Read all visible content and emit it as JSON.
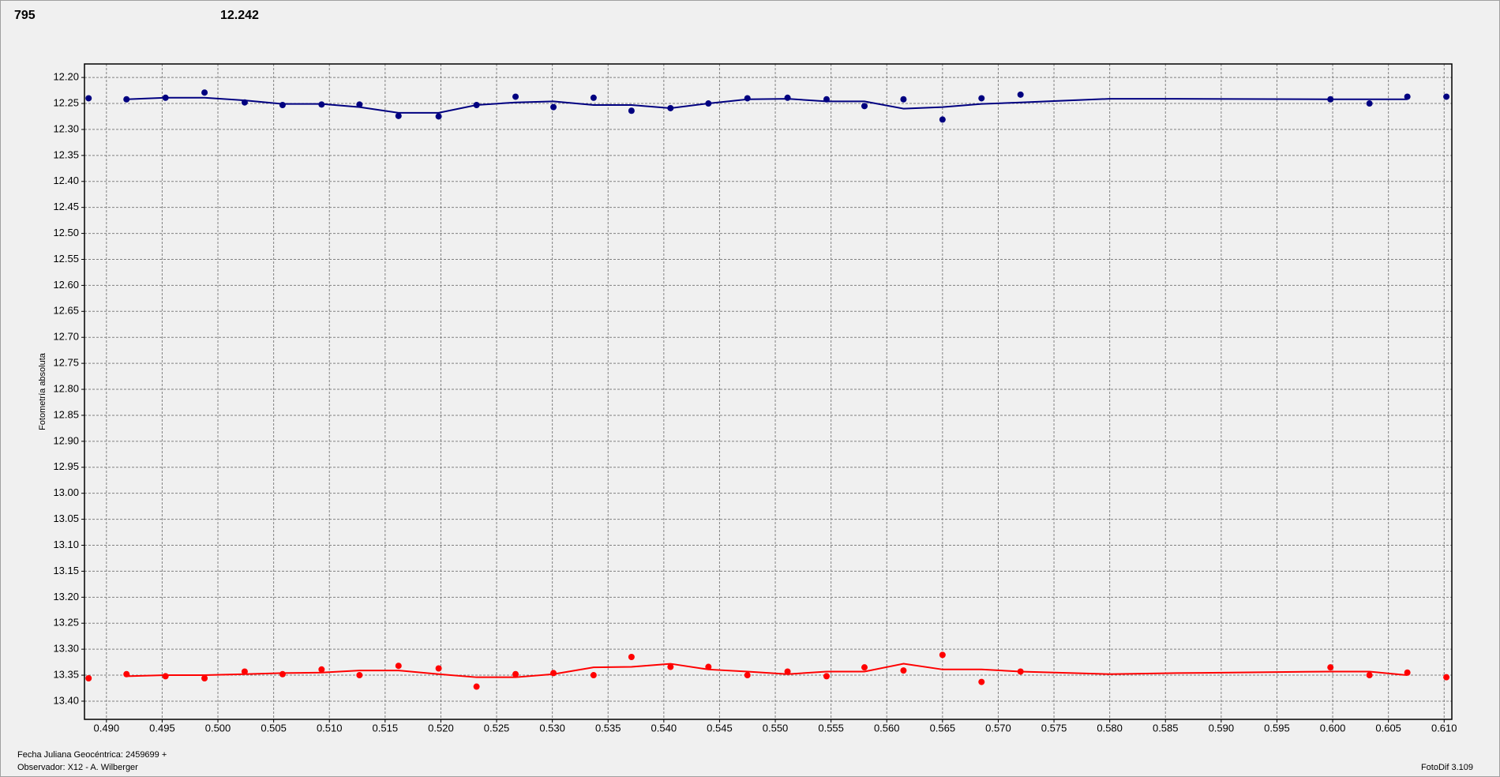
{
  "chart_data": {
    "type": "scatter",
    "readouts": [
      {
        "text": "795",
        "color": "#ff0000"
      },
      {
        "text": "12.242",
        "color": "#000080"
      }
    ],
    "y_label": "Fotometría absoluta",
    "footer_left": [
      "Fecha Juliana Geocéntrica: 2459699 +",
      "Observador: X12 - A. Wilberger"
    ],
    "footer_right": "FotoDif 3.109",
    "xlim": [
      0.48803,
      0.61069
    ],
    "ylim": [
      12.174,
      13.435
    ],
    "y_inverted": true,
    "grid": true,
    "xticks": [
      {
        "value": 0.49,
        "label": "0.490"
      },
      0.495,
      {
        "value": 0.5,
        "label": "0.500"
      },
      0.505,
      {
        "value": 0.51,
        "label": "0.510"
      },
      0.515,
      {
        "value": 0.52,
        "label": "0.520"
      },
      0.525,
      {
        "value": 0.53,
        "label": "0.530"
      },
      0.535,
      {
        "value": 0.54,
        "label": "0.540"
      },
      0.545,
      {
        "value": 0.55,
        "label": "0.550"
      },
      0.555,
      {
        "value": 0.56,
        "label": "0.560"
      },
      0.565,
      {
        "value": 0.57,
        "label": "0.570"
      },
      0.575,
      {
        "value": 0.58,
        "label": "0.580"
      },
      0.585,
      {
        "value": 0.59,
        "label": "0.590"
      },
      0.595,
      {
        "value": 0.6,
        "label": "0.600"
      },
      0.605,
      {
        "value": 0.61,
        "label": "0.610"
      }
    ],
    "yticks": [
      {
        "value": 12.2,
        "label": "12.20"
      },
      12.25,
      {
        "value": 12.3,
        "label": "12.30"
      },
      12.35,
      {
        "value": 12.4,
        "label": "12.40"
      },
      12.45,
      {
        "value": 12.5,
        "label": "12.50"
      },
      12.55,
      {
        "value": 12.6,
        "label": "12.60"
      },
      12.65,
      {
        "value": 12.7,
        "label": "12.70"
      },
      12.75,
      {
        "value": 12.8,
        "label": "12.80"
      },
      12.85,
      {
        "value": 12.9,
        "label": "12.90"
      },
      12.95,
      {
        "value": 13.0,
        "label": "13.00"
      },
      13.05,
      {
        "value": 13.1,
        "label": "13.10"
      },
      13.15,
      {
        "value": 13.2,
        "label": "13.20"
      },
      13.25,
      {
        "value": 13.3,
        "label": "13.30"
      },
      13.35,
      {
        "value": 13.4,
        "label": "13.40"
      }
    ],
    "series": [
      {
        "style": "points",
        "color": "#000080",
        "x": [
          0.4884,
          0.4918,
          0.4953,
          0.4988,
          0.5024,
          0.5058,
          0.5093,
          0.5127,
          0.5162,
          0.5198,
          0.5232,
          0.5267,
          0.5301,
          0.5337,
          0.5371,
          0.5406,
          0.544,
          0.5475,
          0.5511,
          0.5546,
          0.558,
          0.5615,
          0.565,
          0.5685,
          0.572,
          0.5998,
          0.6033,
          0.6067,
          0.6102
        ],
        "values": [
          12.24,
          12.242,
          12.239,
          12.229,
          12.248,
          12.253,
          12.252,
          12.252,
          12.274,
          12.275,
          12.253,
          12.237,
          12.257,
          12.239,
          12.264,
          12.259,
          12.25,
          12.24,
          12.239,
          12.242,
          12.255,
          12.242,
          12.281,
          12.24,
          12.233,
          12.242,
          12.25,
          12.237,
          12.237
        ]
      },
      {
        "style": "line",
        "color": "#000080",
        "x": [
          0.4918,
          0.4953,
          0.4988,
          0.5024,
          0.5058,
          0.5093,
          0.5127,
          0.5162,
          0.5198,
          0.5232,
          0.5267,
          0.5301,
          0.5337,
          0.5371,
          0.5406,
          0.544,
          0.5475,
          0.5511,
          0.5546,
          0.558,
          0.5615,
          0.565,
          0.5685,
          0.572,
          0.58,
          0.586,
          0.5998,
          0.6033,
          0.6067
        ],
        "values": [
          12.242,
          12.239,
          12.239,
          12.244,
          12.251,
          12.251,
          12.257,
          12.268,
          12.268,
          12.253,
          12.248,
          12.246,
          12.253,
          12.253,
          12.259,
          12.25,
          12.242,
          12.241,
          12.246,
          12.246,
          12.26,
          12.257,
          12.251,
          12.248,
          12.241,
          12.241,
          12.242,
          12.242,
          12.242
        ]
      },
      {
        "style": "points",
        "color": "#ff0000",
        "x": [
          0.4884,
          0.4918,
          0.4953,
          0.4988,
          0.5024,
          0.5058,
          0.5093,
          0.5127,
          0.5162,
          0.5198,
          0.5232,
          0.5267,
          0.5301,
          0.5337,
          0.5371,
          0.5406,
          0.544,
          0.5475,
          0.5511,
          0.5546,
          0.558,
          0.5615,
          0.565,
          0.5685,
          0.572,
          0.5998,
          0.6033,
          0.6067,
          0.6102
        ],
        "values": [
          13.356,
          13.348,
          13.352,
          13.356,
          13.343,
          13.348,
          13.339,
          13.35,
          13.332,
          13.337,
          13.372,
          13.348,
          13.346,
          13.35,
          13.315,
          13.334,
          13.334,
          13.35,
          13.343,
          13.352,
          13.335,
          13.341,
          13.311,
          13.363,
          13.343,
          13.335,
          13.35,
          13.345,
          13.354
        ]
      },
      {
        "style": "line",
        "color": "#ff0000",
        "x": [
          0.4918,
          0.4953,
          0.4988,
          0.5024,
          0.5058,
          0.5093,
          0.5127,
          0.5162,
          0.5198,
          0.5232,
          0.5267,
          0.5301,
          0.5337,
          0.5371,
          0.5406,
          0.544,
          0.5475,
          0.5511,
          0.5546,
          0.558,
          0.5615,
          0.565,
          0.5685,
          0.572,
          0.58,
          0.586,
          0.5998,
          0.6033,
          0.6067
        ],
        "values": [
          13.352,
          13.35,
          13.35,
          13.348,
          13.346,
          13.345,
          13.341,
          13.341,
          13.348,
          13.354,
          13.354,
          13.348,
          13.335,
          13.334,
          13.328,
          13.339,
          13.343,
          13.348,
          13.343,
          13.343,
          13.328,
          13.339,
          13.339,
          13.343,
          13.348,
          13.346,
          13.343,
          13.343,
          13.35
        ]
      }
    ]
  }
}
